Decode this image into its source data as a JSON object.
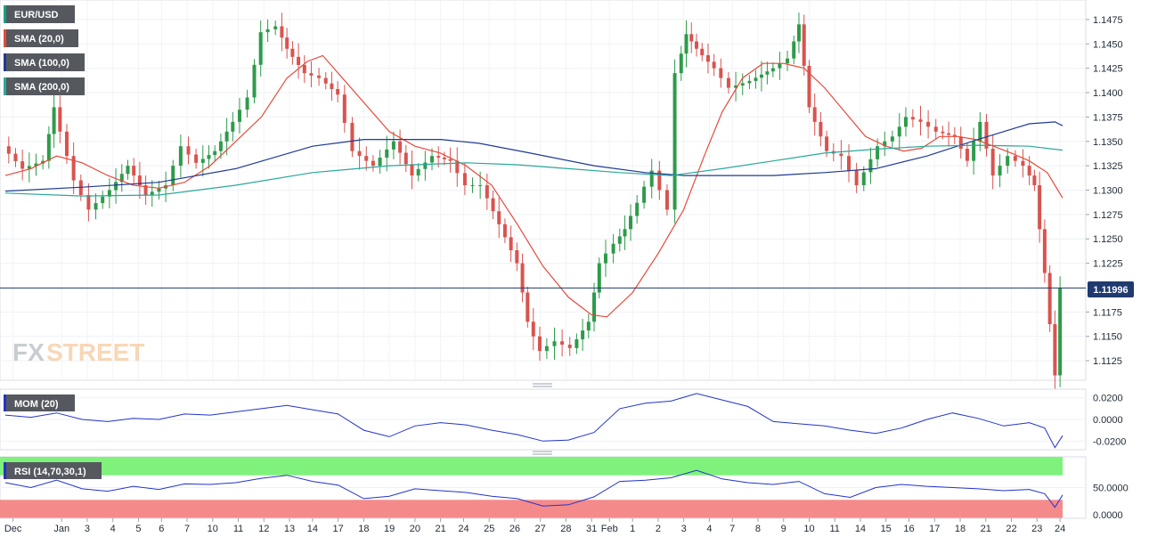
{
  "chart_data": {
    "type": "candlestick",
    "instrument": "EUR/USD",
    "current_price": "1.11996",
    "price_axis": {
      "ylim": [
        1.1105,
        1.1495
      ],
      "ticks": [
        {
          "value": 1.1475,
          "label": "1.1475"
        },
        {
          "value": 1.145,
          "label": "1.1450"
        },
        {
          "value": 1.1425,
          "label": "1.1425"
        },
        {
          "value": 1.14,
          "label": "1.1400"
        },
        {
          "value": 1.1375,
          "label": "1.1375"
        },
        {
          "value": 1.135,
          "label": "1.1350"
        },
        {
          "value": 1.1325,
          "label": "1.1325"
        },
        {
          "value": 1.13,
          "label": "1.1300"
        },
        {
          "value": 1.1275,
          "label": "1.1275"
        },
        {
          "value": 1.125,
          "label": "1.1250"
        },
        {
          "value": 1.1225,
          "label": "1.1225"
        },
        {
          "value": 1.1175,
          "label": "1.1175"
        },
        {
          "value": 1.115,
          "label": "1.1150"
        },
        {
          "value": 1.1125,
          "label": "1.1125"
        }
      ]
    },
    "x_axis": {
      "range": [
        0,
        41.3
      ],
      "labels": [
        {
          "x": 0.3,
          "label": "Dec"
        },
        {
          "x": 2.2,
          "label": "Jan"
        },
        {
          "x": 3.2,
          "label": "3"
        },
        {
          "x": 4.2,
          "label": "4"
        },
        {
          "x": 5.2,
          "label": "5"
        },
        {
          "x": 6.1,
          "label": "6"
        },
        {
          "x": 7.1,
          "label": "7"
        },
        {
          "x": 8.1,
          "label": "10"
        },
        {
          "x": 9.1,
          "label": "11"
        },
        {
          "x": 10.1,
          "label": "12"
        },
        {
          "x": 11.1,
          "label": "13"
        },
        {
          "x": 12.0,
          "label": "14"
        },
        {
          "x": 13.0,
          "label": "17"
        },
        {
          "x": 14.0,
          "label": "18"
        },
        {
          "x": 15.0,
          "label": "19"
        },
        {
          "x": 16.0,
          "label": "20"
        },
        {
          "x": 17.0,
          "label": "21"
        },
        {
          "x": 17.9,
          "label": "24"
        },
        {
          "x": 18.9,
          "label": "25"
        },
        {
          "x": 19.9,
          "label": "26"
        },
        {
          "x": 20.9,
          "label": "27"
        },
        {
          "x": 21.9,
          "label": "28"
        },
        {
          "x": 22.9,
          "label": "31"
        },
        {
          "x": 23.6,
          "label": "Feb"
        },
        {
          "x": 24.5,
          "label": "1"
        },
        {
          "x": 25.5,
          "label": "2"
        },
        {
          "x": 26.5,
          "label": "3"
        },
        {
          "x": 27.5,
          "label": "4"
        },
        {
          "x": 28.4,
          "label": "7"
        },
        {
          "x": 29.4,
          "label": "8"
        },
        {
          "x": 30.4,
          "label": "9"
        },
        {
          "x": 31.4,
          "label": "10"
        },
        {
          "x": 32.4,
          "label": "11"
        },
        {
          "x": 33.4,
          "label": "14"
        },
        {
          "x": 34.4,
          "label": "15"
        },
        {
          "x": 35.3,
          "label": "16"
        },
        {
          "x": 36.3,
          "label": "17"
        },
        {
          "x": 37.3,
          "label": "18"
        },
        {
          "x": 38.3,
          "label": "21"
        },
        {
          "x": 39.3,
          "label": "22"
        },
        {
          "x": 40.3,
          "label": "23"
        },
        {
          "x": 41.2,
          "label": "24"
        }
      ]
    },
    "price_data": [
      [
        0.0,
        1.1345
      ],
      [
        0.8,
        1.1322
      ],
      [
        1.6,
        1.133
      ],
      [
        2.0,
        1.1385
      ],
      [
        2.8,
        1.131
      ],
      [
        3.4,
        1.128
      ],
      [
        4.2,
        1.13
      ],
      [
        4.9,
        1.1325
      ],
      [
        5.6,
        1.1295
      ],
      [
        6.4,
        1.1305
      ],
      [
        7.0,
        1.1345
      ],
      [
        7.6,
        1.1328
      ],
      [
        8.3,
        1.134
      ],
      [
        9.0,
        1.137
      ],
      [
        9.6,
        1.1395
      ],
      [
        10.1,
        1.1462
      ],
      [
        10.7,
        1.1468
      ],
      [
        11.1,
        1.1445
      ],
      [
        11.8,
        1.142
      ],
      [
        12.4,
        1.1415
      ],
      [
        13.1,
        1.1398
      ],
      [
        13.7,
        1.134
      ],
      [
        14.5,
        1.1325
      ],
      [
        15.3,
        1.135
      ],
      [
        16.0,
        1.1315
      ],
      [
        16.8,
        1.1335
      ],
      [
        17.5,
        1.133
      ],
      [
        18.1,
        1.1305
      ],
      [
        18.7,
        1.1305
      ],
      [
        19.4,
        1.1265
      ],
      [
        20.1,
        1.1225
      ],
      [
        20.5,
        1.1165
      ],
      [
        21.0,
        1.1135
      ],
      [
        21.6,
        1.1145
      ],
      [
        22.2,
        1.1138
      ],
      [
        22.9,
        1.1165
      ],
      [
        23.3,
        1.1225
      ],
      [
        23.9,
        1.1245
      ],
      [
        24.3,
        1.126
      ],
      [
        24.8,
        1.1287
      ],
      [
        25.4,
        1.132
      ],
      [
        26.0,
        1.128
      ],
      [
        26.3,
        1.142
      ],
      [
        26.7,
        1.146
      ],
      [
        27.1,
        1.1445
      ],
      [
        27.8,
        1.1425
      ],
      [
        28.4,
        1.1405
      ],
      [
        29.2,
        1.1412
      ],
      [
        30.1,
        1.1425
      ],
      [
        30.7,
        1.1435
      ],
      [
        31.1,
        1.147
      ],
      [
        31.5,
        1.1385
      ],
      [
        32.2,
        1.134
      ],
      [
        32.8,
        1.1335
      ],
      [
        33.4,
        1.1305
      ],
      [
        34.2,
        1.1345
      ],
      [
        34.8,
        1.1355
      ],
      [
        35.3,
        1.1375
      ],
      [
        35.9,
        1.137
      ],
      [
        36.5,
        1.136
      ],
      [
        37.2,
        1.1355
      ],
      [
        37.7,
        1.133
      ],
      [
        38.2,
        1.137
      ],
      [
        38.7,
        1.1315
      ],
      [
        39.3,
        1.1335
      ],
      [
        39.9,
        1.1325
      ],
      [
        40.3,
        1.1305
      ],
      [
        40.7,
        1.1215
      ],
      [
        41.1,
        1.111
      ],
      [
        41.3,
        1.11996
      ]
    ],
    "series": [
      {
        "name": "SMA (20,0)",
        "color": "#e8493a",
        "points": [
          [
            0.0,
            1.1315
          ],
          [
            1.0,
            1.1322
          ],
          [
            2.0,
            1.1335
          ],
          [
            3.0,
            1.1328
          ],
          [
            4.0,
            1.1315
          ],
          [
            5.0,
            1.1305
          ],
          [
            6.0,
            1.1302
          ],
          [
            7.0,
            1.1308
          ],
          [
            8.0,
            1.1325
          ],
          [
            9.0,
            1.135
          ],
          [
            10.0,
            1.1375
          ],
          [
            11.0,
            1.1415
          ],
          [
            11.8,
            1.1432
          ],
          [
            12.4,
            1.1438
          ],
          [
            13.0,
            1.142
          ],
          [
            14.0,
            1.139
          ],
          [
            15.0,
            1.136
          ],
          [
            16.0,
            1.1345
          ],
          [
            17.0,
            1.1338
          ],
          [
            18.0,
            1.1325
          ],
          [
            19.0,
            1.1305
          ],
          [
            20.0,
            1.1265
          ],
          [
            21.0,
            1.1222
          ],
          [
            22.0,
            1.119
          ],
          [
            22.9,
            1.1172
          ],
          [
            23.5,
            1.117
          ],
          [
            24.5,
            1.1195
          ],
          [
            25.5,
            1.1235
          ],
          [
            26.5,
            1.128
          ],
          [
            27.3,
            1.1335
          ],
          [
            28.0,
            1.138
          ],
          [
            28.8,
            1.1415
          ],
          [
            29.6,
            1.143
          ],
          [
            30.4,
            1.143
          ],
          [
            31.2,
            1.1425
          ],
          [
            32.0,
            1.1405
          ],
          [
            32.8,
            1.138
          ],
          [
            33.6,
            1.1355
          ],
          [
            34.4,
            1.1345
          ],
          [
            35.1,
            1.134
          ],
          [
            35.8,
            1.1343
          ],
          [
            36.5,
            1.1355
          ],
          [
            37.2,
            1.1355
          ],
          [
            37.9,
            1.1352
          ],
          [
            38.6,
            1.1345
          ],
          [
            39.3,
            1.1338
          ],
          [
            40.0,
            1.133
          ],
          [
            40.7,
            1.1318
          ],
          [
            41.3,
            1.1292
          ]
        ]
      },
      {
        "name": "SMA (100,0)",
        "color": "#1f3a93",
        "points": [
          [
            0.0,
            1.1299
          ],
          [
            3.0,
            1.1303
          ],
          [
            6.0,
            1.1308
          ],
          [
            9.0,
            1.1322
          ],
          [
            12.0,
            1.1345
          ],
          [
            14.0,
            1.1352
          ],
          [
            17.0,
            1.1352
          ],
          [
            18.5,
            1.1348
          ],
          [
            20.5,
            1.1338
          ],
          [
            23.0,
            1.1325
          ],
          [
            25.0,
            1.1318
          ],
          [
            26.5,
            1.1315
          ],
          [
            28.0,
            1.1315
          ],
          [
            30.0,
            1.1315
          ],
          [
            32.0,
            1.1318
          ],
          [
            34.0,
            1.1322
          ],
          [
            36.0,
            1.1335
          ],
          [
            38.0,
            1.1352
          ],
          [
            40.0,
            1.1368
          ],
          [
            41.0,
            1.137
          ],
          [
            41.3,
            1.1366
          ]
        ]
      },
      {
        "name": "SMA (200,0)",
        "color": "#2aa89a",
        "points": [
          [
            0.0,
            1.1297
          ],
          [
            3.0,
            1.1294
          ],
          [
            6.0,
            1.1295
          ],
          [
            9.0,
            1.1305
          ],
          [
            12.0,
            1.1318
          ],
          [
            15.0,
            1.1325
          ],
          [
            18.0,
            1.1328
          ],
          [
            20.0,
            1.1326
          ],
          [
            22.0,
            1.1322
          ],
          [
            24.0,
            1.1318
          ],
          [
            26.0,
            1.1315
          ],
          [
            28.0,
            1.1322
          ],
          [
            30.0,
            1.133
          ],
          [
            32.0,
            1.1338
          ],
          [
            34.0,
            1.1342
          ],
          [
            36.0,
            1.1345
          ],
          [
            38.0,
            1.1346
          ],
          [
            40.0,
            1.1345
          ],
          [
            41.3,
            1.1341
          ]
        ]
      }
    ],
    "momentum": {
      "name": "MOM (20)",
      "color": "#2233cc",
      "ylim": [
        -0.028,
        0.028
      ],
      "ticks": [
        {
          "value": 0.02,
          "label": "0.0200"
        },
        {
          "value": 0.0,
          "label": "0.0000"
        },
        {
          "value": -0.02,
          "label": "-0.0200"
        }
      ],
      "points": [
        [
          0.0,
          0.004
        ],
        [
          1.0,
          0.002
        ],
        [
          2.0,
          0.006
        ],
        [
          3.0,
          0.0
        ],
        [
          4.0,
          -0.002
        ],
        [
          5.0,
          0.001
        ],
        [
          6.0,
          0.0
        ],
        [
          7.0,
          0.005
        ],
        [
          8.0,
          0.004
        ],
        [
          9.0,
          0.007
        ],
        [
          10.0,
          0.01
        ],
        [
          11.0,
          0.013
        ],
        [
          12.0,
          0.009
        ],
        [
          13.0,
          0.005
        ],
        [
          14.0,
          -0.01
        ],
        [
          15.0,
          -0.016
        ],
        [
          16.0,
          -0.006
        ],
        [
          17.0,
          -0.003
        ],
        [
          18.0,
          -0.005
        ],
        [
          19.0,
          -0.01
        ],
        [
          20.0,
          -0.014
        ],
        [
          21.0,
          -0.02
        ],
        [
          22.0,
          -0.019
        ],
        [
          23.0,
          -0.012
        ],
        [
          24.0,
          0.01
        ],
        [
          25.0,
          0.015
        ],
        [
          26.0,
          0.017
        ],
        [
          27.0,
          0.024
        ],
        [
          28.0,
          0.018
        ],
        [
          29.0,
          0.012
        ],
        [
          30.0,
          -0.002
        ],
        [
          31.0,
          -0.004
        ],
        [
          32.0,
          -0.006
        ],
        [
          33.0,
          -0.01
        ],
        [
          34.0,
          -0.013
        ],
        [
          35.0,
          -0.008
        ],
        [
          36.0,
          0.0
        ],
        [
          37.0,
          0.006
        ],
        [
          38.0,
          0.001
        ],
        [
          39.0,
          -0.006
        ],
        [
          40.0,
          -0.003
        ],
        [
          40.6,
          -0.008
        ],
        [
          41.0,
          -0.026
        ],
        [
          41.3,
          -0.015
        ]
      ]
    },
    "rsi": {
      "name": "RSI (14,70,30,1)",
      "color": "#2233cc",
      "overbought": 70,
      "oversold": 30,
      "overbought_color": "#7ef27a",
      "oversold_color": "#f58a8a",
      "ylim": [
        0,
        100
      ],
      "ticks": [
        {
          "value": 50,
          "label": "50.0000"
        },
        {
          "value": 0,
          "label": "0.0000"
        }
      ],
      "points": [
        [
          0.0,
          58
        ],
        [
          1.0,
          50
        ],
        [
          2.0,
          62
        ],
        [
          3.0,
          48
        ],
        [
          4.0,
          44
        ],
        [
          5.0,
          52
        ],
        [
          6.0,
          47
        ],
        [
          7.0,
          56
        ],
        [
          8.0,
          55
        ],
        [
          9.0,
          58
        ],
        [
          10.0,
          65
        ],
        [
          11.0,
          70
        ],
        [
          12.0,
          60
        ],
        [
          13.0,
          54
        ],
        [
          14.0,
          32
        ],
        [
          15.0,
          36
        ],
        [
          16.0,
          48
        ],
        [
          17.0,
          45
        ],
        [
          18.0,
          42
        ],
        [
          19.0,
          36
        ],
        [
          20.0,
          32
        ],
        [
          21.0,
          20
        ],
        [
          22.0,
          22
        ],
        [
          23.0,
          35
        ],
        [
          24.0,
          60
        ],
        [
          25.0,
          62
        ],
        [
          26.0,
          66
        ],
        [
          27.0,
          78
        ],
        [
          28.0,
          64
        ],
        [
          29.0,
          58
        ],
        [
          30.0,
          55
        ],
        [
          31.0,
          60
        ],
        [
          32.0,
          40
        ],
        [
          33.0,
          34
        ],
        [
          34.0,
          50
        ],
        [
          35.0,
          55
        ],
        [
          36.0,
          52
        ],
        [
          37.0,
          50
        ],
        [
          38.0,
          48
        ],
        [
          39.0,
          45
        ],
        [
          40.0,
          47
        ],
        [
          40.6,
          40
        ],
        [
          41.0,
          18
        ],
        [
          41.3,
          38
        ]
      ]
    }
  }
}
